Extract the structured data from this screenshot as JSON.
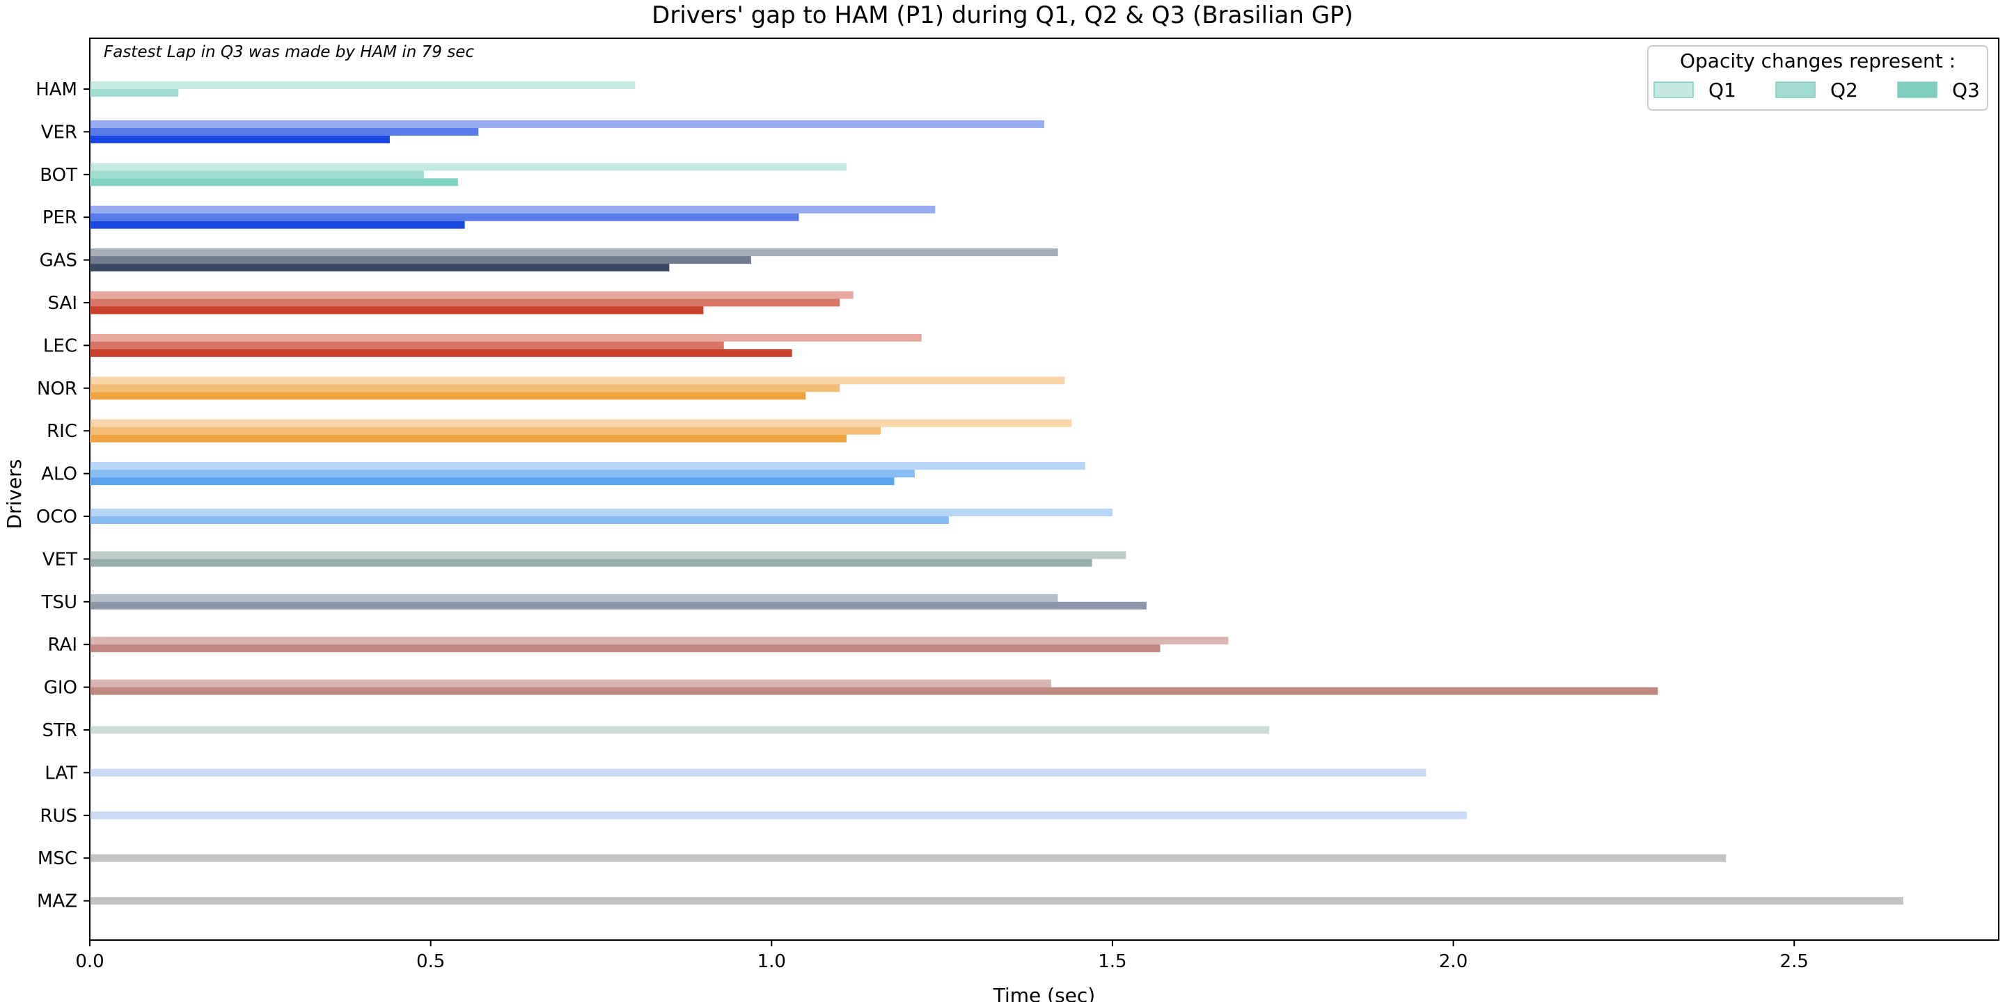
{
  "chart_data": {
    "type": "bar",
    "orientation": "horizontal",
    "title": "Drivers' gap to HAM (P1) during Q1, Q2 & Q3 (Brasilian GP)",
    "xlabel": "Time (sec)",
    "ylabel": "Drivers",
    "annotation": "Fastest Lap in Q3 was made by HAM in 79 sec",
    "xlim": [
      0.0,
      2.8
    ],
    "xticks": [
      "0.0",
      "0.5",
      "1.0",
      "1.5",
      "2.0",
      "2.5"
    ],
    "grid": false,
    "legend": {
      "title": "Opacity changes represent :",
      "placement": "top-right",
      "entries": [
        "Q1",
        "Q2",
        "Q3"
      ],
      "color": "#7fcdbf",
      "opacities": [
        0.45,
        0.72,
        1.0
      ]
    },
    "categories": [
      "HAM",
      "VER",
      "BOT",
      "PER",
      "GAS",
      "SAI",
      "LEC",
      "NOR",
      "RIC",
      "ALO",
      "OCO",
      "VET",
      "TSU",
      "RAI",
      "GIO",
      "STR",
      "LAT",
      "RUS",
      "MSC",
      "MAZ"
    ],
    "colors": [
      "#7fd1c1",
      "#1848e0",
      "#7fd1c1",
      "#1848e0",
      "#3a4a63",
      "#c9402b",
      "#c9402b",
      "#efa441",
      "#efa441",
      "#5aa4ee",
      "#5aa4ee",
      "#6e9089",
      "#5e6f87",
      "#a95a51",
      "#a95a51",
      "#8fb2a8",
      "#8caee9",
      "#8caee9",
      "#7a7a7a",
      "#7a7a7a"
    ],
    "series": [
      {
        "name": "Q1",
        "values": [
          0.8,
          1.4,
          1.11,
          1.24,
          1.42,
          1.12,
          1.22,
          1.43,
          1.44,
          1.46,
          1.5,
          1.52,
          1.42,
          1.67,
          1.41,
          1.73,
          1.96,
          2.02,
          2.4,
          2.66
        ]
      },
      {
        "name": "Q2",
        "values": [
          0.13,
          0.57,
          0.49,
          1.04,
          0.97,
          1.1,
          0.93,
          1.1,
          1.16,
          1.21,
          1.26,
          1.47,
          1.55,
          1.57,
          2.3,
          null,
          null,
          null,
          null,
          null
        ]
      },
      {
        "name": "Q3",
        "values": [
          null,
          0.44,
          0.54,
          0.55,
          0.85,
          0.9,
          1.03,
          1.05,
          1.11,
          1.18,
          null,
          null,
          null,
          null,
          null,
          null,
          null,
          null,
          null,
          null
        ]
      }
    ]
  }
}
